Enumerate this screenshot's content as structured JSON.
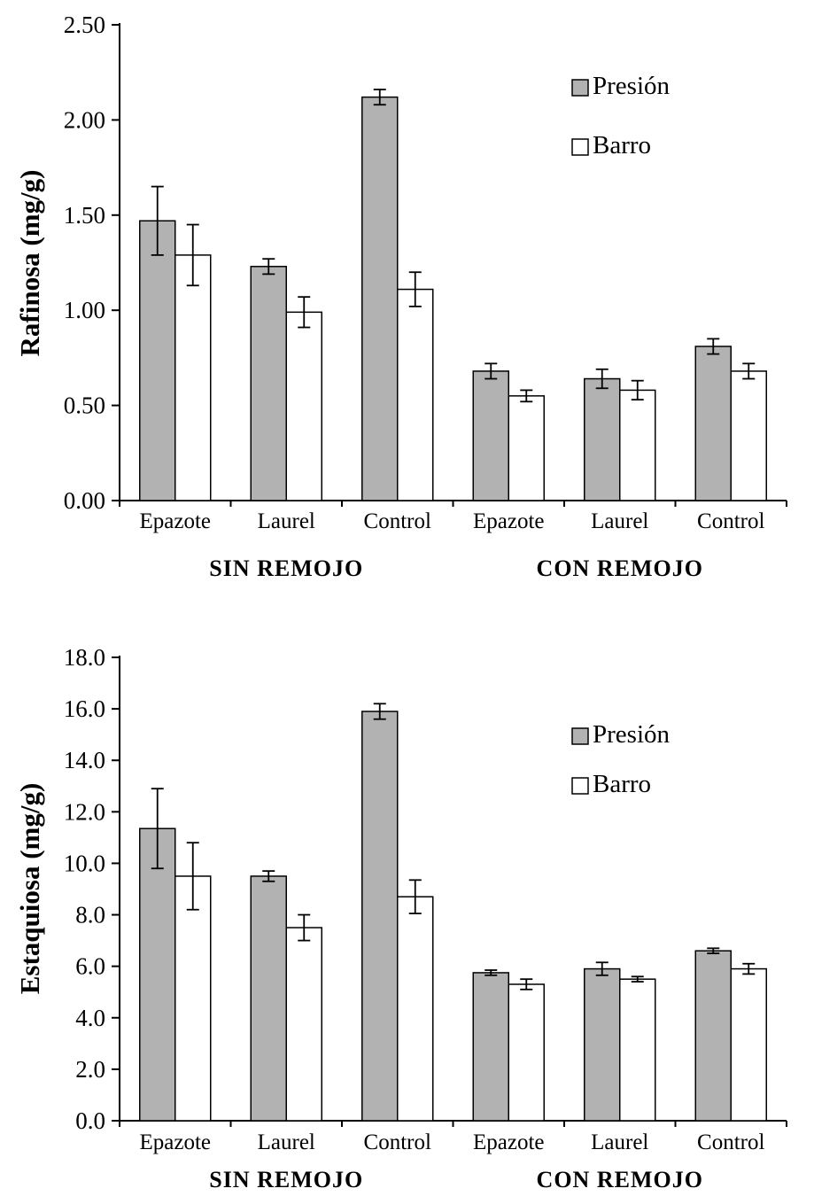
{
  "figure": {
    "background": "#ffffff",
    "axis_color": "#000000",
    "error_bar_color": "#000000"
  },
  "chart_data": [
    {
      "id": "rafinosa",
      "type": "bar",
      "title": "",
      "xlabel": "",
      "ylabel": "Rafinosa (mg/g)",
      "ylim": [
        0,
        2.5
      ],
      "ytick_step": 0.5,
      "ytick_decimals": 2,
      "grid": false,
      "legend_position": "upper-right-inside",
      "categories": [
        "Epazote",
        "Laurel",
        "Control",
        "Epazote",
        "Laurel",
        "Control"
      ],
      "group_labels": [
        "SIN REMOJO",
        "CON REMOJO"
      ],
      "series": [
        {
          "name": "Presión",
          "fill": "#b2b2b2",
          "values": [
            1.47,
            1.23,
            2.12,
            0.68,
            0.64,
            0.81
          ],
          "errors": [
            0.18,
            0.04,
            0.04,
            0.04,
            0.05,
            0.04
          ]
        },
        {
          "name": "Barro",
          "fill": "#ffffff",
          "values": [
            1.29,
            0.99,
            1.11,
            0.55,
            0.58,
            0.68
          ],
          "errors": [
            0.16,
            0.08,
            0.09,
            0.03,
            0.05,
            0.04
          ]
        }
      ]
    },
    {
      "id": "estaquiosa",
      "type": "bar",
      "title": "",
      "xlabel": "",
      "ylabel": "Estaquiosa (mg/g)",
      "ylim": [
        0,
        18
      ],
      "ytick_step": 2,
      "ytick_decimals": 1,
      "grid": false,
      "legend_position": "upper-right-inside",
      "categories": [
        "Epazote",
        "Laurel",
        "Control",
        "Epazote",
        "Laurel",
        "Control"
      ],
      "group_labels": [
        "SIN REMOJO",
        "CON REMOJO"
      ],
      "series": [
        {
          "name": "Presión",
          "fill": "#b2b2b2",
          "values": [
            11.35,
            9.5,
            15.9,
            5.75,
            5.9,
            6.6
          ],
          "errors": [
            1.55,
            0.2,
            0.3,
            0.1,
            0.25,
            0.1
          ]
        },
        {
          "name": "Barro",
          "fill": "#ffffff",
          "values": [
            9.5,
            7.5,
            8.7,
            5.3,
            5.5,
            5.9
          ],
          "errors": [
            1.3,
            0.5,
            0.65,
            0.2,
            0.1,
            0.2
          ]
        }
      ]
    }
  ]
}
